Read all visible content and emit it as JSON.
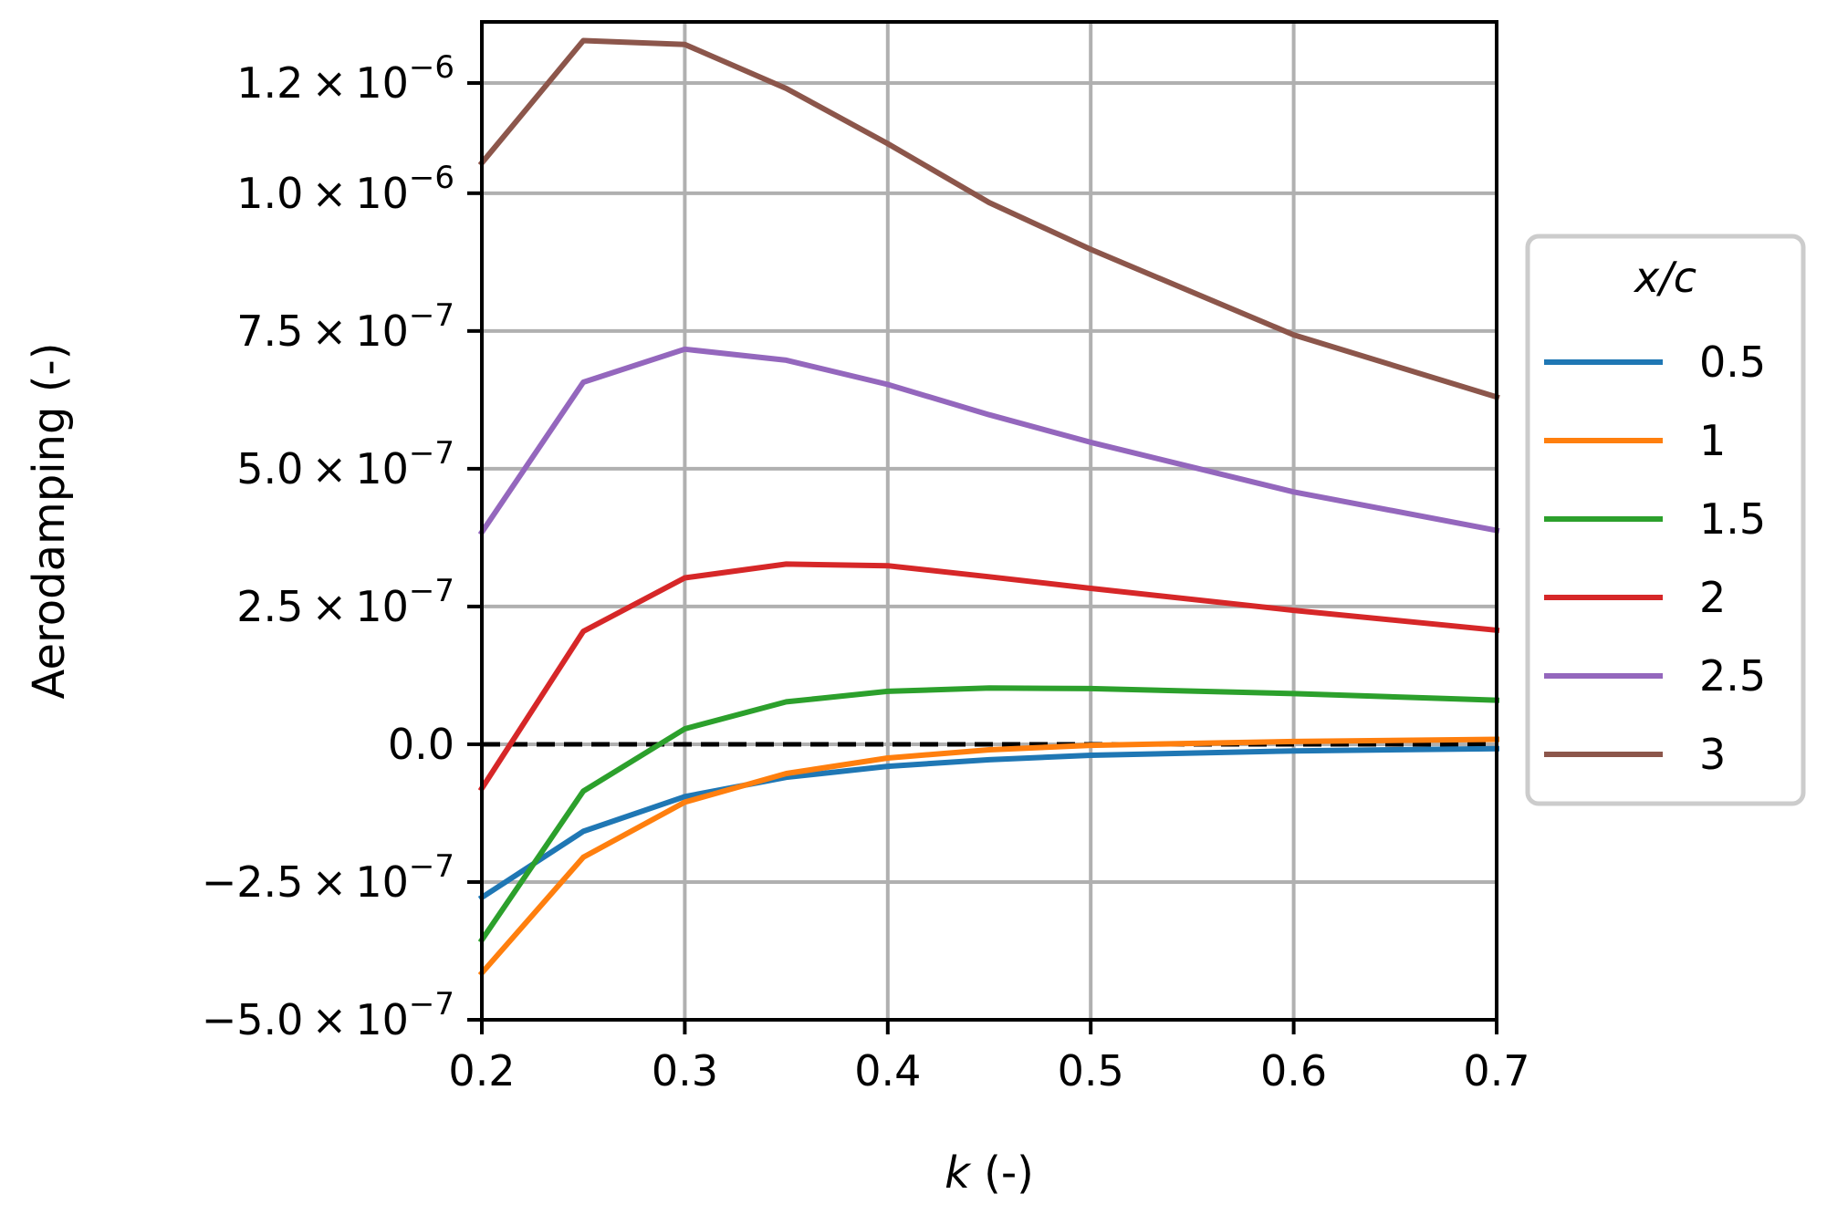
{
  "chart_data": {
    "type": "line",
    "title": "",
    "xlabel": {
      "var": "k",
      "rest": " (-)"
    },
    "ylabel": "Aerodamping (-)",
    "xlim": [
      0.2,
      0.7
    ],
    "ylim": [
      -5e-07,
      1.3e-06
    ],
    "grid": true,
    "x_ticks": [
      {
        "value": 0.2,
        "label": "0.2"
      },
      {
        "value": 0.3,
        "label": "0.3"
      },
      {
        "value": 0.4,
        "label": "0.4"
      },
      {
        "value": 0.5,
        "label": "0.5"
      },
      {
        "value": 0.6,
        "label": "0.6"
      },
      {
        "value": 0.7,
        "label": "0.7"
      }
    ],
    "y_ticks": [
      {
        "value": -5e-07,
        "mantissa": "−5.0",
        "exp": "−7"
      },
      {
        "value": -2.5e-07,
        "mantissa": "−2.5",
        "exp": "−7"
      },
      {
        "value": 0,
        "mantissa": "0.0",
        "exp": ""
      },
      {
        "value": 2.5e-07,
        "mantissa": "2.5",
        "exp": "−7"
      },
      {
        "value": 5e-07,
        "mantissa": "5.0",
        "exp": "−7"
      },
      {
        "value": 7.5e-07,
        "mantissa": "7.5",
        "exp": "−7"
      },
      {
        "value": 1e-06,
        "mantissa": "1.0",
        "exp": "−6"
      },
      {
        "value": 1.2e-06,
        "mantissa": "1.2",
        "exp": "−6"
      }
    ],
    "reference_line": {
      "y": 0,
      "style": "dashed",
      "color": "#000000"
    },
    "x": [
      0.2,
      0.25,
      0.3,
      0.35,
      0.4,
      0.45,
      0.5,
      0.6,
      0.7
    ],
    "legend": {
      "title": "x/c",
      "placement": "outside-right"
    },
    "series": [
      {
        "name": "0.5",
        "color": "#1f77b4",
        "values": [
          -2.78e-07,
          -1.58e-07,
          -9.5e-08,
          -6e-08,
          -4e-08,
          -2.8e-08,
          -2e-08,
          -1.2e-08,
          -8e-09
        ]
      },
      {
        "name": "1",
        "color": "#ff7f0e",
        "values": [
          -4.15e-07,
          -2.05e-07,
          -1.05e-07,
          -5.3e-08,
          -2.5e-08,
          -1e-08,
          -2e-09,
          5e-09,
          9e-09
        ]
      },
      {
        "name": "1.5",
        "color": "#2ca02c",
        "values": [
          -3.55e-07,
          -8.5e-08,
          2.8e-08,
          7.7e-08,
          9.6e-08,
          1.02e-07,
          1.01e-07,
          9.2e-08,
          8e-08
        ]
      },
      {
        "name": "2",
        "color": "#d62728",
        "values": [
          -8e-08,
          2.05e-07,
          3.02e-07,
          3.27e-07,
          3.24e-07,
          3.04e-07,
          2.83e-07,
          2.43e-07,
          2.07e-07
        ]
      },
      {
        "name": "2.5",
        "color": "#9467bd",
        "values": [
          3.85e-07,
          6.57e-07,
          7.17e-07,
          6.97e-07,
          6.53e-07,
          5.98e-07,
          5.48e-07,
          4.58e-07,
          3.88e-07
        ]
      },
      {
        "name": "3",
        "color": "#8c564b",
        "values": [
          1.055e-06,
          1.277e-06,
          1.27e-06,
          1.19e-06,
          1.09e-06,
          9.83e-07,
          8.98e-07,
          7.43e-07,
          6.3e-07
        ]
      }
    ]
  }
}
